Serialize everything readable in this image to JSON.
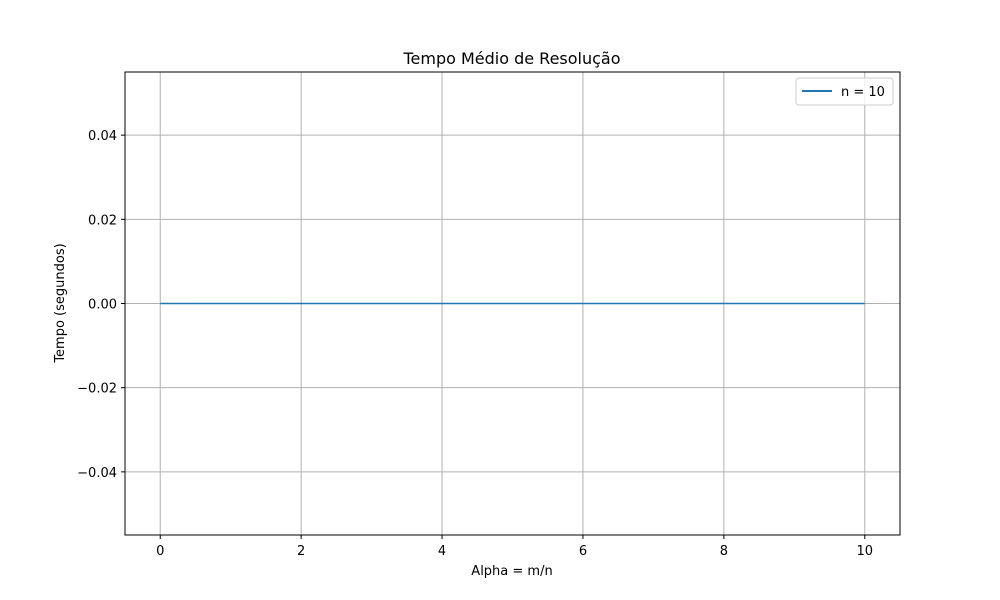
{
  "chart_data": {
    "type": "line",
    "title": "Tempo Médio de Resolução",
    "xlabel": "Alpha = m/n",
    "ylabel": "Tempo (segundos)",
    "xlim": [
      -0.5,
      10.5
    ],
    "ylim": [
      -0.055,
      0.055
    ],
    "xticks": [
      0,
      2,
      4,
      6,
      8,
      10
    ],
    "xtick_labels": [
      "0",
      "2",
      "4",
      "6",
      "8",
      "10"
    ],
    "yticks": [
      -0.04,
      -0.02,
      0.0,
      0.02,
      0.04
    ],
    "ytick_labels": [
      "−0.04",
      "−0.02",
      "0.00",
      "0.02",
      "0.04"
    ],
    "grid": true,
    "legend_position": "top-right",
    "series": [
      {
        "name": "n = 10",
        "color": "#1f77b4",
        "x": [
          0,
          10
        ],
        "y": [
          0,
          0
        ]
      }
    ]
  }
}
